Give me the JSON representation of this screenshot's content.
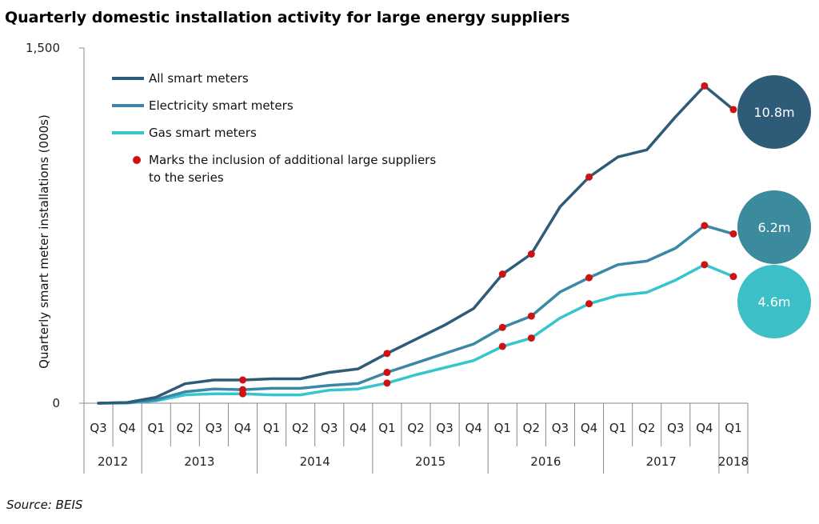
{
  "chart_data": {
    "type": "line",
    "title": "Quarterly domestic installation activity for large energy suppliers",
    "ylabel": "Quarterly smart meter installations (000s)",
    "ylim": [
      0,
      1500
    ],
    "yticks": [
      {
        "value": 0,
        "label": "0"
      },
      {
        "value": 1500,
        "label": "1,500"
      }
    ],
    "categories": [
      "Q3",
      "Q4",
      "Q1",
      "Q2",
      "Q3",
      "Q4",
      "Q1",
      "Q2",
      "Q3",
      "Q4",
      "Q1",
      "Q2",
      "Q3",
      "Q4",
      "Q1",
      "Q2",
      "Q3",
      "Q4",
      "Q1",
      "Q2",
      "Q3",
      "Q4",
      "Q1"
    ],
    "years": [
      {
        "label": "2012",
        "span": 2
      },
      {
        "label": "2013",
        "span": 4
      },
      {
        "label": "2014",
        "span": 4
      },
      {
        "label": "2015",
        "span": 4
      },
      {
        "label": "2016",
        "span": 4
      },
      {
        "label": "2017",
        "span": 4
      },
      {
        "label": "2018",
        "span": 1
      }
    ],
    "series": [
      {
        "name": "All smart meters",
        "color": "#2e5b78",
        "values": [
          0,
          3,
          25,
          82,
          98,
          98,
          103,
          103,
          130,
          145,
          210,
          270,
          330,
          400,
          545,
          630,
          830,
          955,
          1040,
          1070,
          1210,
          1340,
          1240
        ],
        "total_label": "10.8m",
        "total_color": "#2e5b78"
      },
      {
        "name": "Electricity smart meters",
        "color": "#3a88a6",
        "values": [
          0,
          2,
          15,
          48,
          60,
          57,
          63,
          63,
          75,
          83,
          130,
          170,
          210,
          250,
          320,
          368,
          470,
          530,
          585,
          600,
          655,
          750,
          715
        ],
        "total_label": "6.2m",
        "total_color": "#3b8a9d"
      },
      {
        "name": "Gas smart meters",
        "color": "#35c5cc",
        "values": [
          0,
          1,
          10,
          35,
          40,
          40,
          35,
          35,
          55,
          60,
          85,
          120,
          150,
          180,
          240,
          275,
          360,
          420,
          455,
          468,
          520,
          585,
          535
        ],
        "total_label": "4.6m",
        "total_color": "#3cbfc7"
      }
    ],
    "markers": {
      "label": "Marks the inclusion of additional large suppliers to the series",
      "color": "#cc1212",
      "indices": [
        5,
        10,
        14,
        15,
        17,
        21,
        22
      ]
    },
    "legend_position": "top-left",
    "grid": false
  },
  "source": "Source: BEIS"
}
